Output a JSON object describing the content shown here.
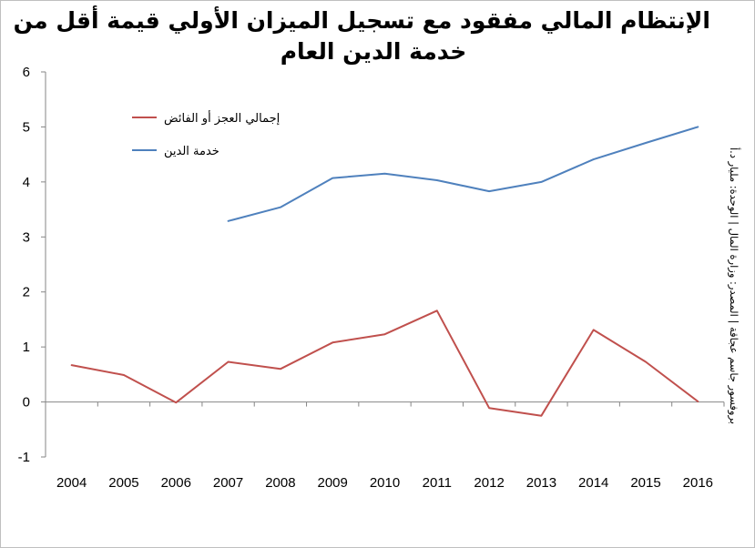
{
  "chart_data": {
    "type": "line",
    "title_lines": [
      "الإنتظام المالي مفقود مع تسجيل الميزان الأولي قيمة أقل من",
      "خدمة الدين العام"
    ],
    "source_note": "بروفسور جاسم عجاقة | المصدر: وزارة المال | الوحدة: مليار د.أ",
    "x": [
      2004,
      2005,
      2006,
      2007,
      2008,
      2009,
      2010,
      2011,
      2012,
      2013,
      2014,
      2015,
      2016
    ],
    "ylim": [
      -1,
      6
    ],
    "yticks": [
      -1,
      0,
      1,
      2,
      3,
      4,
      5,
      6
    ],
    "grid": "horizontal line at 0 only",
    "legend_position": "top-left inside plot",
    "series": [
      {
        "name": "إجمالي العجز أو الفائض",
        "color": "#c0504d",
        "values": [
          0.67,
          0.49,
          -0.01,
          0.73,
          0.6,
          1.08,
          1.23,
          1.66,
          -0.11,
          -0.25,
          1.31,
          0.73,
          0.01
        ]
      },
      {
        "name": "خدمة الدين",
        "color": "#4f81bd",
        "values": [
          null,
          null,
          null,
          3.29,
          3.54,
          4.07,
          4.15,
          4.03,
          3.83,
          4.0,
          4.41,
          4.71,
          5.0
        ]
      }
    ]
  }
}
